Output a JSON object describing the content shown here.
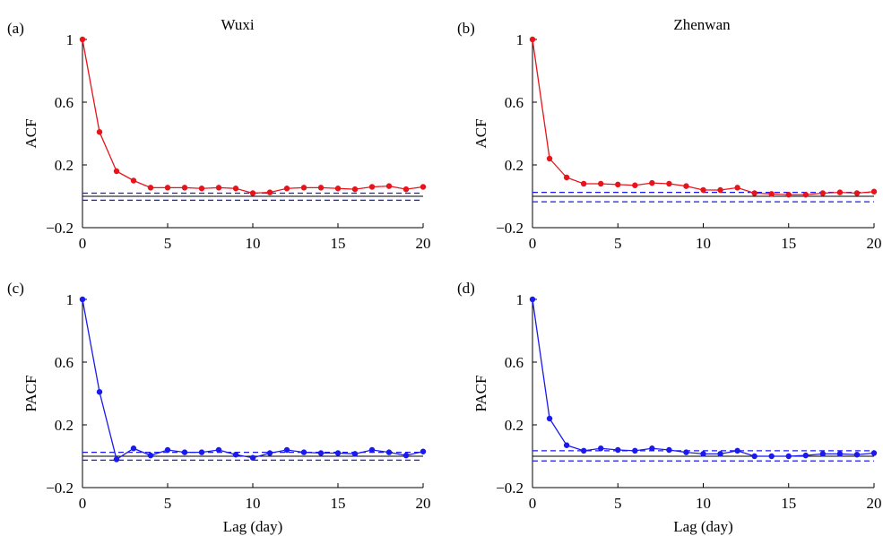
{
  "chart_data": [
    {
      "type": "line",
      "panel_label": "(a)",
      "title": "Wuxi",
      "ylabel": "ACF",
      "xlabel": "",
      "xlim": [
        0,
        20
      ],
      "ylim": [
        -0.2,
        1
      ],
      "xticks": [
        0,
        5,
        10,
        15,
        20
      ],
      "yticks": [
        1,
        0.6,
        0.2,
        -0.2
      ],
      "ytick_labels": [
        "1",
        "0.6",
        "0.2",
        "−0.2"
      ],
      "grid": false,
      "confidence_bounds": [
        0.02,
        -0.025
      ],
      "series": [
        {
          "color": "#e8141c",
          "x": [
            0,
            1,
            2,
            3,
            4,
            5,
            6,
            7,
            8,
            9,
            10,
            11,
            12,
            13,
            14,
            15,
            16,
            17,
            18,
            19,
            20
          ],
          "values": [
            1.0,
            0.41,
            0.16,
            0.1,
            0.055,
            0.055,
            0.055,
            0.05,
            0.055,
            0.05,
            0.02,
            0.025,
            0.05,
            0.055,
            0.055,
            0.05,
            0.045,
            0.06,
            0.065,
            0.045,
            0.06
          ]
        }
      ]
    },
    {
      "type": "line",
      "panel_label": "(b)",
      "title": "Zhenwan",
      "ylabel": "ACF",
      "xlabel": "",
      "xlim": [
        0,
        20
      ],
      "ylim": [
        -0.2,
        1
      ],
      "xticks": [
        0,
        5,
        10,
        15,
        20
      ],
      "yticks": [
        1,
        0.6,
        0.2,
        -0.2
      ],
      "ytick_labels": [
        "1",
        "0.6",
        "0.2",
        "−0.2"
      ],
      "grid": false,
      "confidence_bounds": [
        0.025,
        -0.035
      ],
      "series": [
        {
          "color": "#e8141c",
          "x": [
            0,
            1,
            2,
            3,
            4,
            5,
            6,
            7,
            8,
            9,
            10,
            11,
            12,
            13,
            14,
            15,
            16,
            17,
            18,
            19,
            20
          ],
          "values": [
            1.0,
            0.24,
            0.12,
            0.08,
            0.08,
            0.075,
            0.07,
            0.085,
            0.08,
            0.065,
            0.04,
            0.04,
            0.055,
            0.02,
            0.015,
            0.01,
            0.01,
            0.02,
            0.025,
            0.02,
            0.03
          ]
        }
      ]
    },
    {
      "type": "line",
      "panel_label": "(c)",
      "title": "",
      "ylabel": "PACF",
      "xlabel": "Lag (day)",
      "xlim": [
        0,
        20
      ],
      "ylim": [
        -0.2,
        1
      ],
      "xticks": [
        0,
        5,
        10,
        15,
        20
      ],
      "yticks": [
        1,
        0.6,
        0.2,
        -0.2
      ],
      "ytick_labels": [
        "1",
        "0.6",
        "0.2",
        "−0.2"
      ],
      "grid": false,
      "confidence_bounds": [
        0.025,
        -0.025
      ],
      "series": [
        {
          "color": "#1a1aee",
          "x": [
            0,
            1,
            2,
            3,
            4,
            5,
            6,
            7,
            8,
            9,
            10,
            11,
            12,
            13,
            14,
            15,
            16,
            17,
            18,
            19,
            20
          ],
          "values": [
            1.0,
            0.41,
            -0.02,
            0.05,
            0.005,
            0.04,
            0.025,
            0.025,
            0.04,
            0.01,
            -0.01,
            0.02,
            0.04,
            0.025,
            0.02,
            0.02,
            0.015,
            0.04,
            0.025,
            0.005,
            0.03
          ]
        }
      ]
    },
    {
      "type": "line",
      "panel_label": "(d)",
      "title": "",
      "ylabel": "PACF",
      "xlabel": "Lag (day)",
      "xlim": [
        0,
        20
      ],
      "ylim": [
        -0.2,
        1
      ],
      "xticks": [
        0,
        5,
        10,
        15,
        20
      ],
      "yticks": [
        1,
        0.6,
        0.2,
        -0.2
      ],
      "ytick_labels": [
        "1",
        "0.6",
        "0.2",
        "−0.2"
      ],
      "grid": false,
      "confidence_bounds": [
        0.035,
        -0.03
      ],
      "series": [
        {
          "color": "#1a1aee",
          "x": [
            0,
            1,
            2,
            3,
            4,
            5,
            6,
            7,
            8,
            9,
            10,
            11,
            12,
            13,
            14,
            15,
            16,
            17,
            18,
            19,
            20
          ],
          "values": [
            1.0,
            0.24,
            0.07,
            0.035,
            0.05,
            0.04,
            0.035,
            0.05,
            0.04,
            0.025,
            0.015,
            0.015,
            0.035,
            0.0,
            0.0,
            0.0,
            0.005,
            0.015,
            0.015,
            0.01,
            0.02
          ]
        }
      ]
    }
  ]
}
